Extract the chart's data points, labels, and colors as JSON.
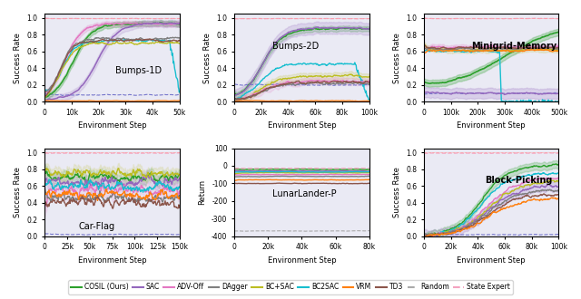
{
  "legend_entries": [
    {
      "label": "COSIL (Ours)",
      "color": "#2ca02c",
      "linestyle": "-"
    },
    {
      "label": "SAC",
      "color": "#9467bd",
      "linestyle": "-"
    },
    {
      "label": "ADV-Off",
      "color": "#e377c2",
      "linestyle": "-"
    },
    {
      "label": "DAgger",
      "color": "#7f7f7f",
      "linestyle": "-"
    },
    {
      "label": "BC+SAC",
      "color": "#bcbd22",
      "linestyle": "-"
    },
    {
      "label": "BC2SAC",
      "color": "#17becf",
      "linestyle": "-"
    },
    {
      "label": "VRM",
      "color": "#ff7f0e",
      "linestyle": "-"
    },
    {
      "label": "TD3",
      "color": "#8c564b",
      "linestyle": "-"
    },
    {
      "label": "Random",
      "color": "#aaaaaa",
      "linestyle": "--"
    },
    {
      "label": "State Expert",
      "color": "#f4a3c0",
      "linestyle": "--"
    }
  ],
  "background_color": "#eaeaf4"
}
